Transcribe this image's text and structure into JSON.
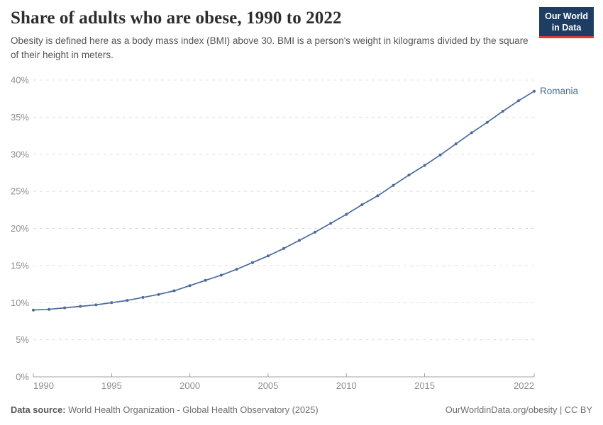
{
  "header": {
    "title": "Share of adults who are obese, 1990 to 2022",
    "subtitle": "Obesity is defined here as a body mass index (BMI) above 30. BMI is a person's weight in kilograms divided by the square of their height in meters.",
    "logo_line1": "Our World",
    "logo_line2": "in Data"
  },
  "chart_data": {
    "type": "line",
    "title": "Share of adults who are obese, 1990 to 2022",
    "xlabel": "",
    "ylabel": "",
    "x": [
      1990,
      1991,
      1992,
      1993,
      1994,
      1995,
      1996,
      1997,
      1998,
      1999,
      2000,
      2001,
      2002,
      2003,
      2004,
      2005,
      2006,
      2007,
      2008,
      2009,
      2010,
      2011,
      2012,
      2013,
      2014,
      2015,
      2016,
      2017,
      2018,
      2019,
      2020,
      2021,
      2022
    ],
    "series": [
      {
        "name": "Romania",
        "color": "#4c6a9c",
        "values": [
          9.0,
          9.1,
          9.3,
          9.5,
          9.7,
          10.0,
          10.3,
          10.7,
          11.1,
          11.6,
          12.3,
          13.0,
          13.7,
          14.5,
          15.4,
          16.3,
          17.3,
          18.4,
          19.5,
          20.7,
          21.9,
          23.2,
          24.4,
          25.8,
          27.2,
          28.5,
          29.9,
          31.4,
          32.9,
          34.3,
          35.8,
          37.2,
          38.5
        ]
      }
    ],
    "xlim": [
      1990,
      2022
    ],
    "ylim": [
      0,
      40
    ],
    "xticks": [
      1990,
      1995,
      2000,
      2005,
      2010,
      2015,
      2022
    ],
    "yticks": [
      0,
      5,
      10,
      15,
      20,
      25,
      30,
      35,
      40
    ],
    "ytick_suffix": "%",
    "grid": "horizontal-dashed",
    "legend_position": "end-of-line"
  },
  "colors": {
    "line": "#4c6a9c",
    "grid": "#dddddd",
    "axis": "#a3a3a3",
    "tick_label": "#8f8f8f",
    "logo_bg": "#1d3d63",
    "logo_accent": "#e0373f"
  },
  "footer": {
    "datasource_label": "Data source:",
    "datasource_text": " World Health Organization - Global Health Observatory (2025)",
    "attribution": "OurWorldinData.org/obesity | CC BY"
  }
}
